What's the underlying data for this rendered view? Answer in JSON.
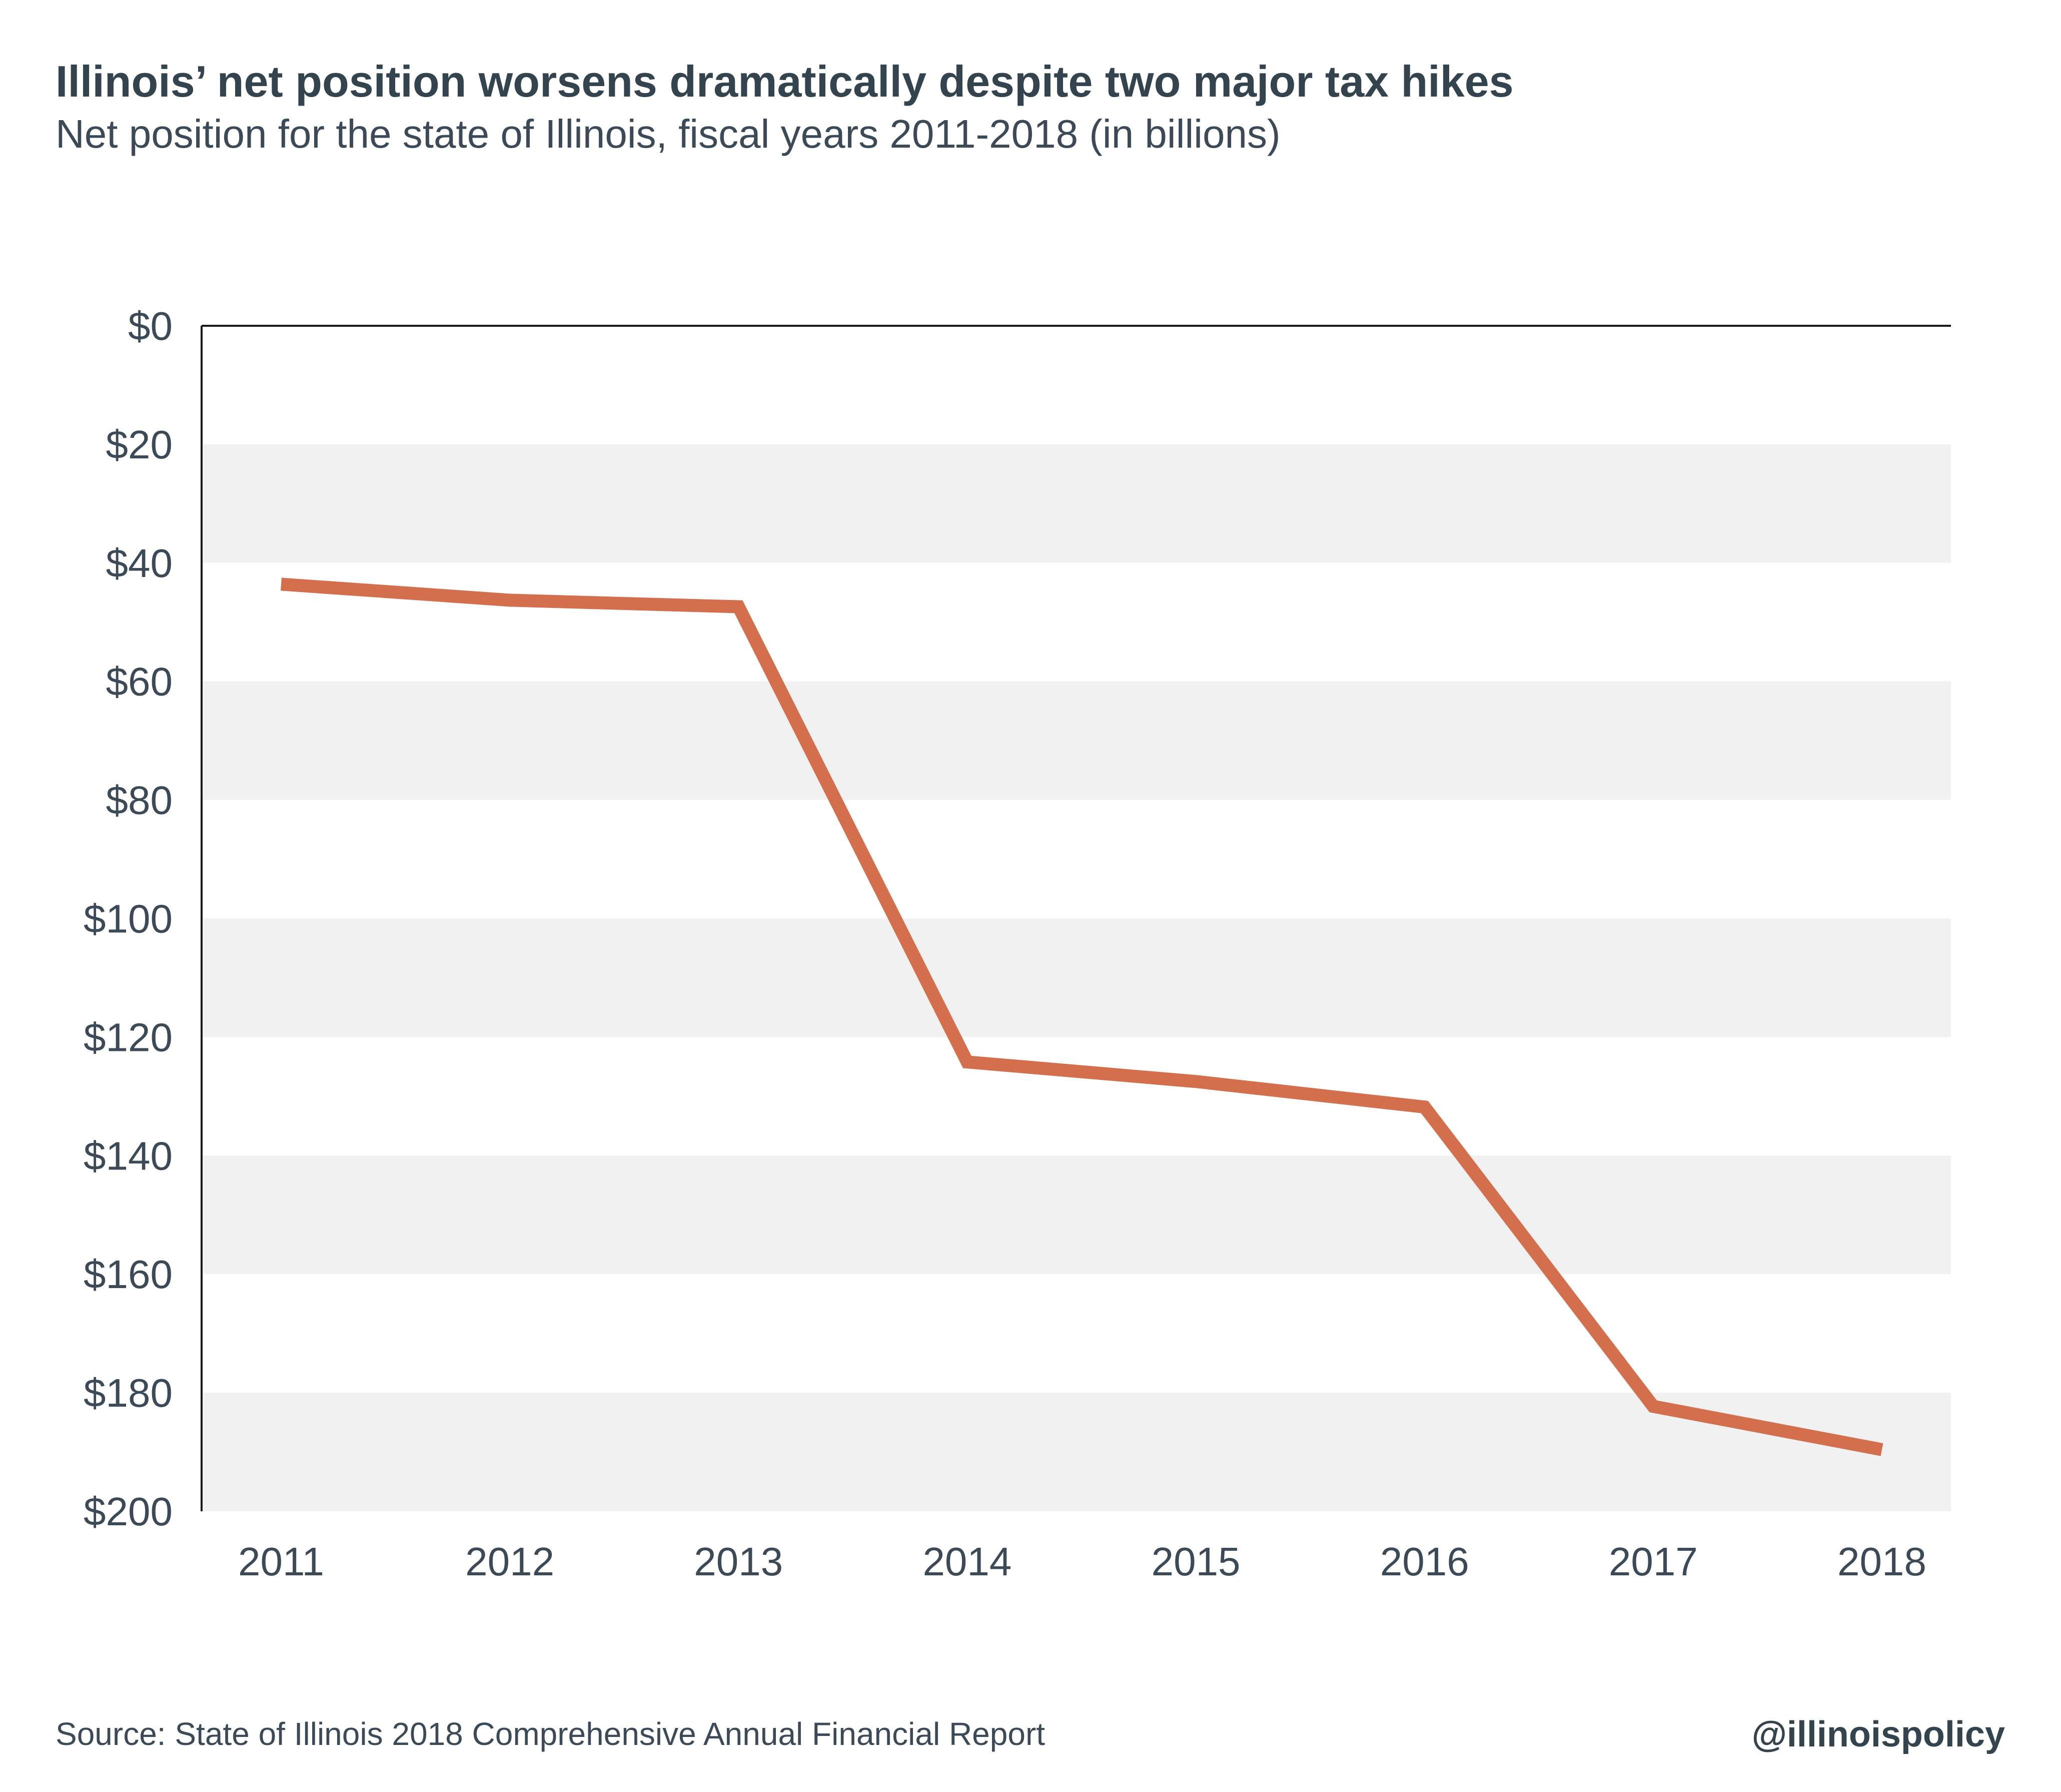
{
  "colors": {
    "line": "#d46f4d",
    "band": "#f1f1f1",
    "axis": "#1a1a1a",
    "text": "#3c4a57",
    "title": "#34444f"
  },
  "footer": {
    "source": "Source: State of Illinois 2018 Comprehensive Annual Financial Report",
    "handle": "@illinoispolicy"
  },
  "chart_data": {
    "type": "line",
    "title": "Illinois’ net position worsens dramatically despite two major tax hikes",
    "subtitle": "Net position for the state of Illinois, fiscal years 2011-2018 (in billions)",
    "xlabel": "",
    "ylabel": "",
    "categories": [
      "2011",
      "2012",
      "2013",
      "2014",
      "2015",
      "2016",
      "2017",
      "2018"
    ],
    "series": [
      {
        "values": [
          -43.6,
          -46.3,
          -47.4,
          -124.2,
          -127.5,
          -131.8,
          -182.3,
          -189.6
        ]
      }
    ],
    "ylim": [
      -200,
      0
    ],
    "yticks": [
      0,
      -20,
      -40,
      -60,
      -80,
      -100,
      -120,
      -140,
      -160,
      -180,
      -200
    ],
    "ytick_labels": [
      "$0",
      "$20",
      "$40",
      "$60",
      "$80",
      "$100",
      "$120",
      "$140",
      "$160",
      "$180",
      "$200"
    ],
    "grid": "alternating horizontal bands",
    "legend": "none"
  }
}
